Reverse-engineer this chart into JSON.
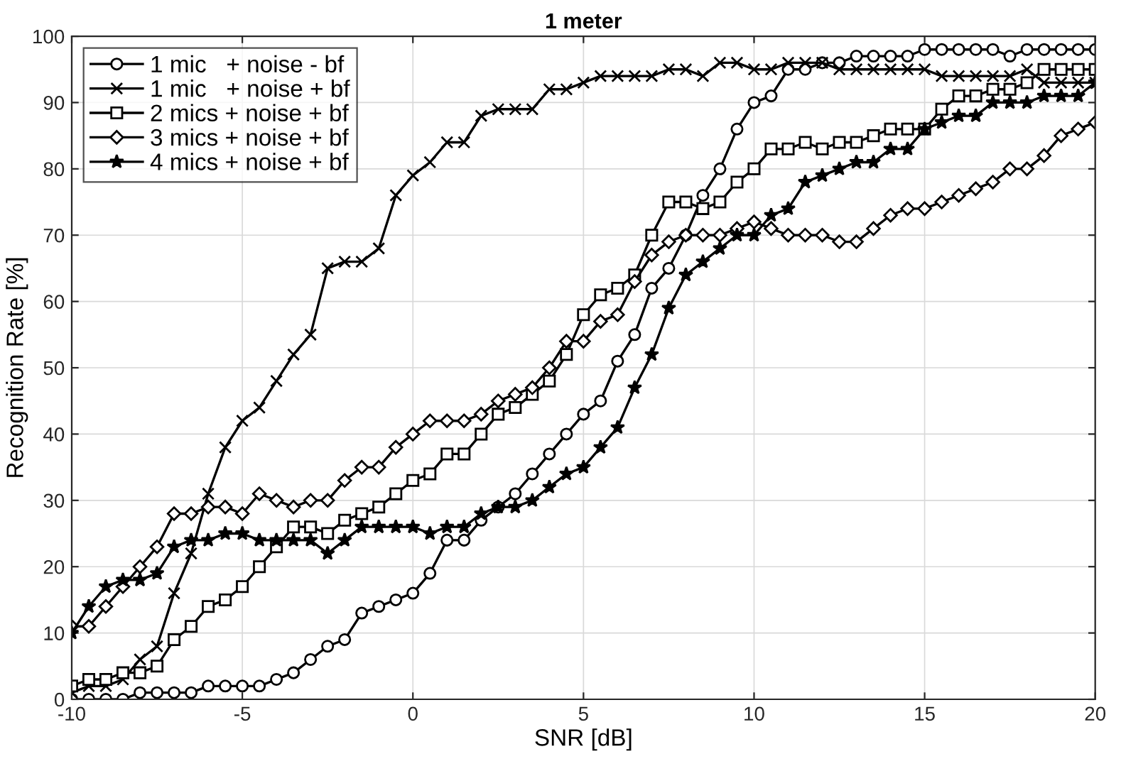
{
  "chart_data": {
    "type": "line",
    "title": "1 meter",
    "xlabel": "SNR [dB]",
    "ylabel": "Recognition Rate [%]",
    "x": [
      -10,
      -9.5,
      -9,
      -8.5,
      -8,
      -7.5,
      -7,
      -6.5,
      -6,
      -5.5,
      -5,
      -4.5,
      -4,
      -3.5,
      -3,
      -2.5,
      -2,
      -1.5,
      -1,
      -0.5,
      0,
      0.5,
      1,
      1.5,
      2,
      2.5,
      3,
      3.5,
      4,
      4.5,
      5,
      5.5,
      6,
      6.5,
      7,
      7.5,
      8,
      8.5,
      9,
      9.5,
      10,
      10.5,
      11,
      11.5,
      12,
      12.5,
      13,
      13.5,
      14,
      14.5,
      15,
      15.5,
      16,
      16.5,
      17,
      17.5,
      18,
      18.5,
      19,
      19.5,
      20
    ],
    "series": [
      {
        "name": "1 mic   + noise - bf",
        "color": "#000000",
        "marker": "circle",
        "values": [
          0,
          0,
          0,
          0,
          1,
          1,
          1,
          1,
          2,
          2,
          2,
          2,
          3,
          4,
          6,
          8,
          9,
          13,
          14,
          15,
          16,
          19,
          24,
          24,
          27,
          29,
          31,
          34,
          37,
          40,
          43,
          45,
          51,
          55,
          62,
          65,
          70,
          76,
          80,
          86,
          90,
          91,
          95,
          95,
          96,
          96,
          97,
          97,
          97,
          97,
          98,
          98,
          98,
          98,
          98,
          97,
          98,
          98,
          98,
          98,
          98
        ]
      },
      {
        "name": "1 mic   + noise + bf",
        "color": "#000000",
        "marker": "cross",
        "values": [
          1,
          2,
          2,
          3,
          6,
          8,
          16,
          22,
          31,
          38,
          42,
          44,
          48,
          52,
          55,
          65,
          66,
          66,
          68,
          76,
          79,
          81,
          84,
          84,
          88,
          89,
          89,
          89,
          92,
          92,
          93,
          94,
          94,
          94,
          94,
          95,
          95,
          94,
          96,
          96,
          95,
          95,
          96,
          96,
          96,
          95,
          95,
          95,
          95,
          95,
          95,
          94,
          94,
          94,
          94,
          94,
          95,
          93,
          93,
          93,
          93
        ]
      },
      {
        "name": "2 mics + noise + bf",
        "color": "#000000",
        "marker": "square",
        "values": [
          2,
          3,
          3,
          4,
          4,
          5,
          9,
          11,
          14,
          15,
          17,
          20,
          23,
          26,
          26,
          25,
          27,
          28,
          29,
          31,
          33,
          34,
          37,
          37,
          40,
          43,
          44,
          46,
          48,
          52,
          58,
          61,
          62,
          64,
          70,
          75,
          75,
          74,
          75,
          78,
          80,
          83,
          83,
          84,
          83,
          84,
          84,
          85,
          86,
          86,
          86,
          89,
          91,
          91,
          92,
          92,
          93,
          95,
          95,
          95,
          95
        ]
      },
      {
        "name": "3 mics + noise + bf",
        "color": "#000000",
        "marker": "diamond",
        "values": [
          11,
          11,
          14,
          17,
          20,
          23,
          28,
          28,
          29,
          29,
          28,
          31,
          30,
          29,
          30,
          30,
          33,
          35,
          35,
          38,
          40,
          42,
          42,
          42,
          43,
          45,
          46,
          47,
          50,
          54,
          54,
          57,
          58,
          63,
          67,
          69,
          70,
          70,
          70,
          71,
          72,
          71,
          70,
          70,
          70,
          69,
          69,
          71,
          73,
          74,
          74,
          75,
          76,
          77,
          78,
          80,
          80,
          82,
          85,
          86,
          87
        ]
      },
      {
        "name": "4 mics + noise + bf",
        "color": "#000000",
        "marker": "star",
        "values": [
          10,
          14,
          17,
          18,
          18,
          19,
          23,
          24,
          24,
          25,
          25,
          24,
          24,
          24,
          24,
          22,
          24,
          26,
          26,
          26,
          26,
          25,
          26,
          26,
          28,
          29,
          29,
          30,
          32,
          34,
          35,
          38,
          41,
          47,
          52,
          59,
          64,
          66,
          68,
          70,
          70,
          73,
          74,
          78,
          79,
          80,
          81,
          81,
          83,
          83,
          86,
          87,
          88,
          88,
          90,
          90,
          90,
          91,
          91,
          91,
          93
        ]
      }
    ],
    "xlim": [
      -10,
      20
    ],
    "xticks": [
      -10,
      -5,
      0,
      5,
      10,
      15,
      20
    ],
    "ylim": [
      0,
      100
    ],
    "yticks": [
      0,
      10,
      20,
      30,
      40,
      50,
      60,
      70,
      80,
      90,
      100
    ],
    "grid": true,
    "legend": "top left",
    "line_style": "solid"
  }
}
